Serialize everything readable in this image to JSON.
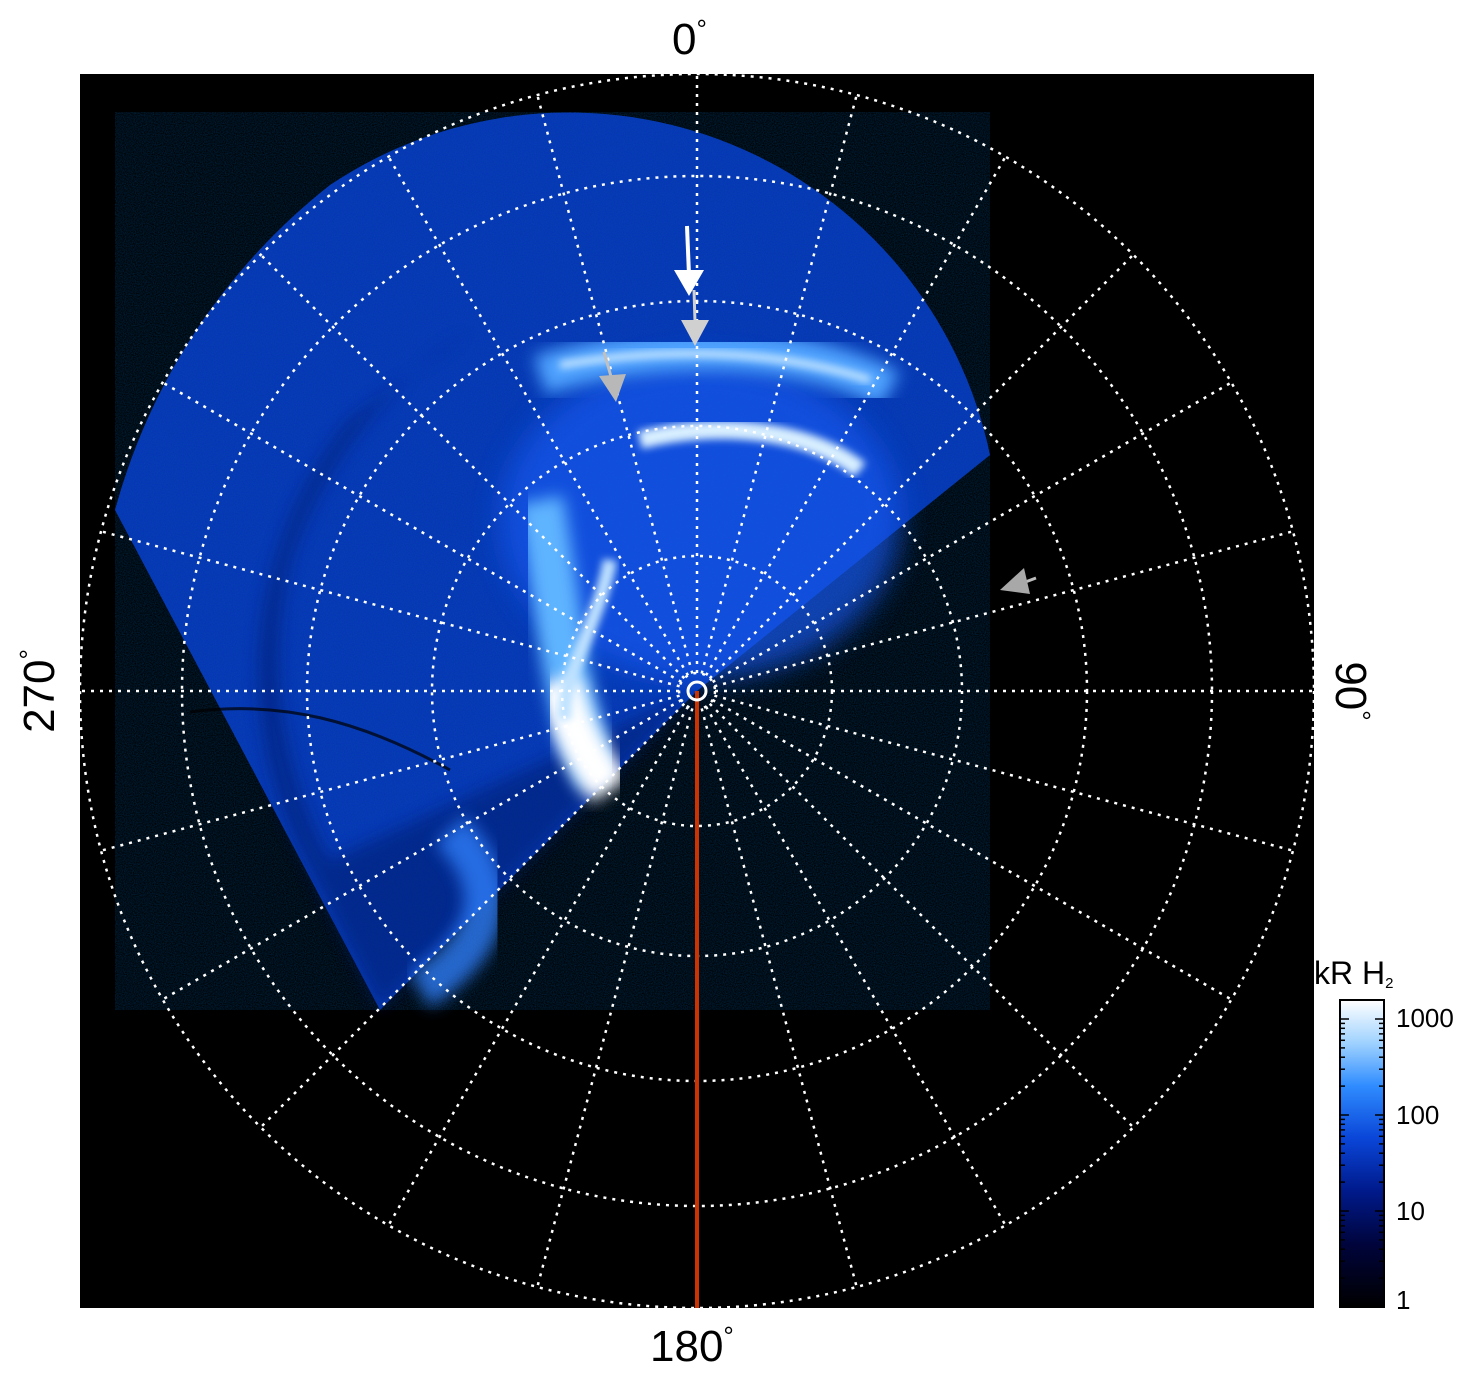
{
  "figure": {
    "angle_labels": {
      "top": "0",
      "right": "90",
      "bottom": "180",
      "left": "270",
      "unit": "°"
    },
    "colorbar": {
      "title_main": "kR H",
      "title_sub": "2",
      "ticks": [
        "1000",
        "100",
        "10",
        "1"
      ],
      "scale": "log",
      "range": [
        1,
        1500
      ]
    },
    "colors": {
      "background": "#000000",
      "grid": "#ffffff",
      "meridian_line": "#cc3300",
      "arrow_white": "#ffffff",
      "arrow_grey": "#bfbfbf",
      "colormap_low": "#000000",
      "colormap_mid": "#0a3fd6",
      "colormap_high": "#ffffff"
    }
  }
}
